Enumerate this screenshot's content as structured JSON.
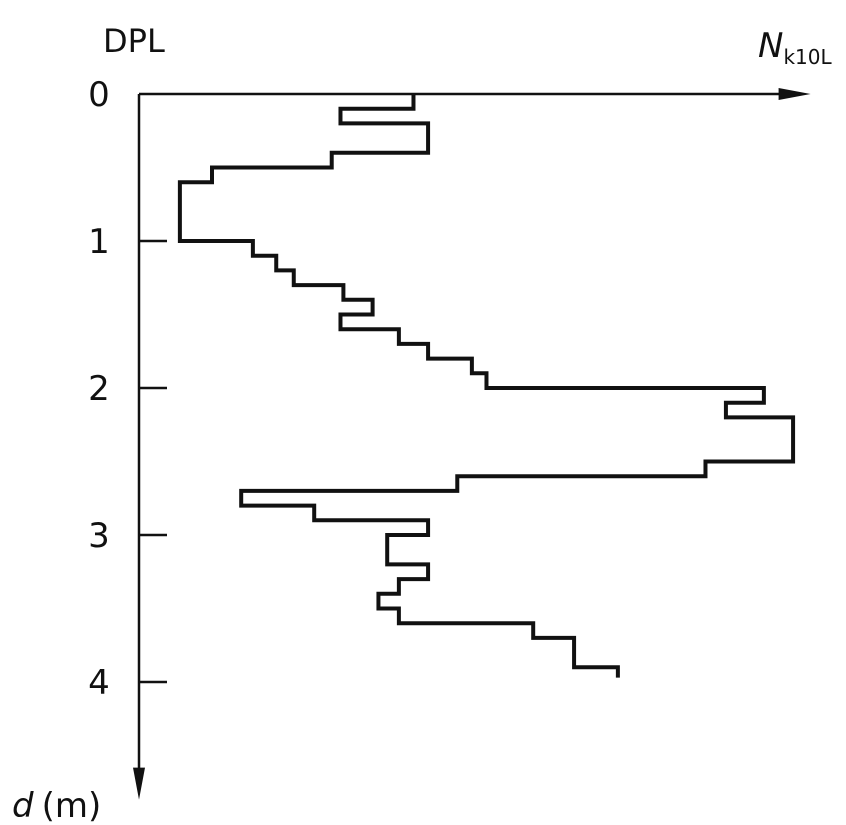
{
  "chart_data": {
    "type": "line",
    "title": "DPL",
    "xlabel_main": "N",
    "xlabel_sub": "k10L",
    "ylabel_var": "d",
    "ylabel_unit": "(m)",
    "y_ticks": [
      "0",
      "1",
      "2",
      "3",
      "4"
    ],
    "ylim": [
      0,
      4.8
    ],
    "xlim": [
      0,
      46
    ],
    "y_inverted": true,
    "series": [
      {
        "values": [
          {
            "d0": 0.0,
            "d1": 0.1,
            "n": 18.8
          },
          {
            "d0": 0.1,
            "d1": 0.2,
            "n": 13.8
          },
          {
            "d0": 0.2,
            "d1": 0.4,
            "n": 19.8
          },
          {
            "d0": 0.4,
            "d1": 0.5,
            "n": 13.2
          },
          {
            "d0": 0.5,
            "d1": 0.6,
            "n": 5.0
          },
          {
            "d0": 0.6,
            "d1": 1.0,
            "n": 2.8
          },
          {
            "d0": 1.0,
            "d1": 1.1,
            "n": 7.8
          },
          {
            "d0": 1.1,
            "d1": 1.2,
            "n": 9.4
          },
          {
            "d0": 1.2,
            "d1": 1.3,
            "n": 10.6
          },
          {
            "d0": 1.3,
            "d1": 1.4,
            "n": 14.0
          },
          {
            "d0": 1.4,
            "d1": 1.5,
            "n": 16.0
          },
          {
            "d0": 1.5,
            "d1": 1.6,
            "n": 13.8
          },
          {
            "d0": 1.6,
            "d1": 1.7,
            "n": 17.8
          },
          {
            "d0": 1.7,
            "d1": 1.8,
            "n": 19.8
          },
          {
            "d0": 1.8,
            "d1": 1.9,
            "n": 22.8
          },
          {
            "d0": 1.9,
            "d1": 2.0,
            "n": 23.8
          },
          {
            "d0": 2.0,
            "d1": 2.1,
            "n": 42.8
          },
          {
            "d0": 2.1,
            "d1": 2.2,
            "n": 40.2
          },
          {
            "d0": 2.2,
            "d1": 2.5,
            "n": 44.8
          },
          {
            "d0": 2.5,
            "d1": 2.6,
            "n": 38.8
          },
          {
            "d0": 2.6,
            "d1": 2.7,
            "n": 21.8
          },
          {
            "d0": 2.7,
            "d1": 2.8,
            "n": 7.0
          },
          {
            "d0": 2.8,
            "d1": 2.9,
            "n": 12.0
          },
          {
            "d0": 2.9,
            "d1": 3.0,
            "n": 19.8
          },
          {
            "d0": 3.0,
            "d1": 3.2,
            "n": 17.0
          },
          {
            "d0": 3.2,
            "d1": 3.3,
            "n": 19.8
          },
          {
            "d0": 3.3,
            "d1": 3.4,
            "n": 17.8
          },
          {
            "d0": 3.4,
            "d1": 3.5,
            "n": 16.4
          },
          {
            "d0": 3.5,
            "d1": 3.6,
            "n": 17.8
          },
          {
            "d0": 3.6,
            "d1": 3.7,
            "n": 27.0
          },
          {
            "d0": 3.7,
            "d1": 3.9,
            "n": 29.8
          },
          {
            "d0": 3.9,
            "d1": 3.97,
            "n": 32.8
          }
        ]
      }
    ]
  }
}
